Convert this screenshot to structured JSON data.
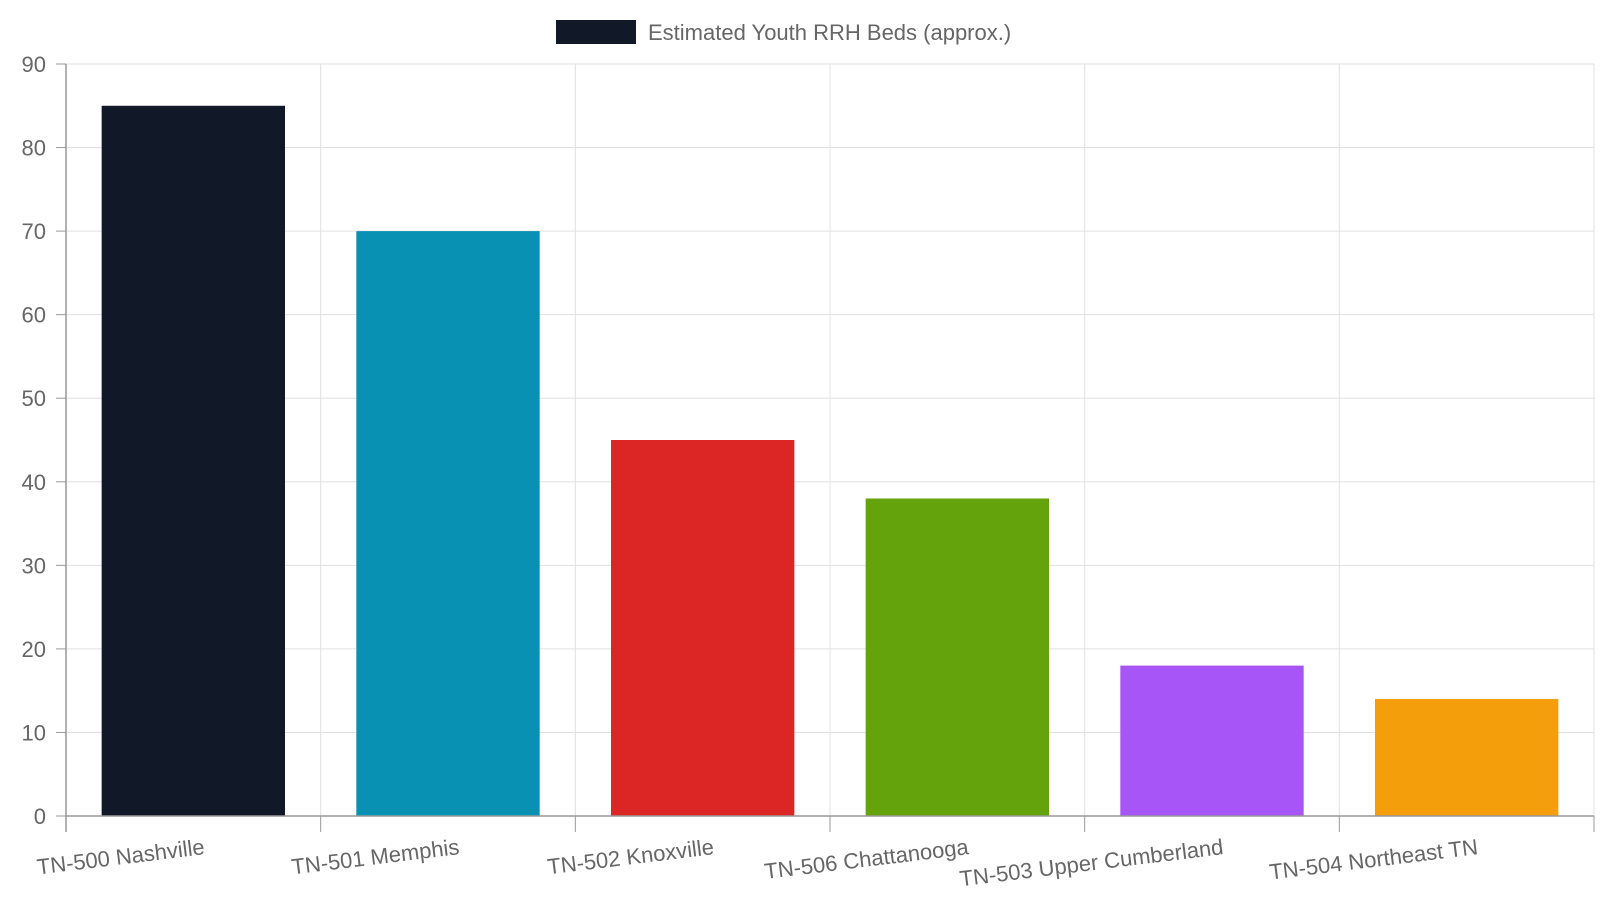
{
  "chart_data": {
    "type": "bar",
    "categories": [
      "TN-500 Nashville",
      "TN-501 Memphis",
      "TN-502 Knoxville",
      "TN-506 Chattanooga",
      "TN-503 Upper Cumberland",
      "TN-504 Northeast TN"
    ],
    "series": [
      {
        "name": "Estimated Youth RRH Beds (approx.)",
        "values": [
          85,
          70,
          45,
          38,
          18,
          14
        ],
        "colors": [
          "#111827",
          "#0891b2",
          "#dc2626",
          "#65a30d",
          "#a855f7",
          "#f59e0b"
        ]
      }
    ],
    "ylim": [
      0,
      90
    ],
    "yticks": [
      0,
      10,
      20,
      30,
      40,
      50,
      60,
      70,
      80,
      90
    ],
    "grid": true,
    "legend_position": "top-center",
    "legend_swatch_color": "#111827",
    "xlabel": "",
    "ylabel": ""
  }
}
